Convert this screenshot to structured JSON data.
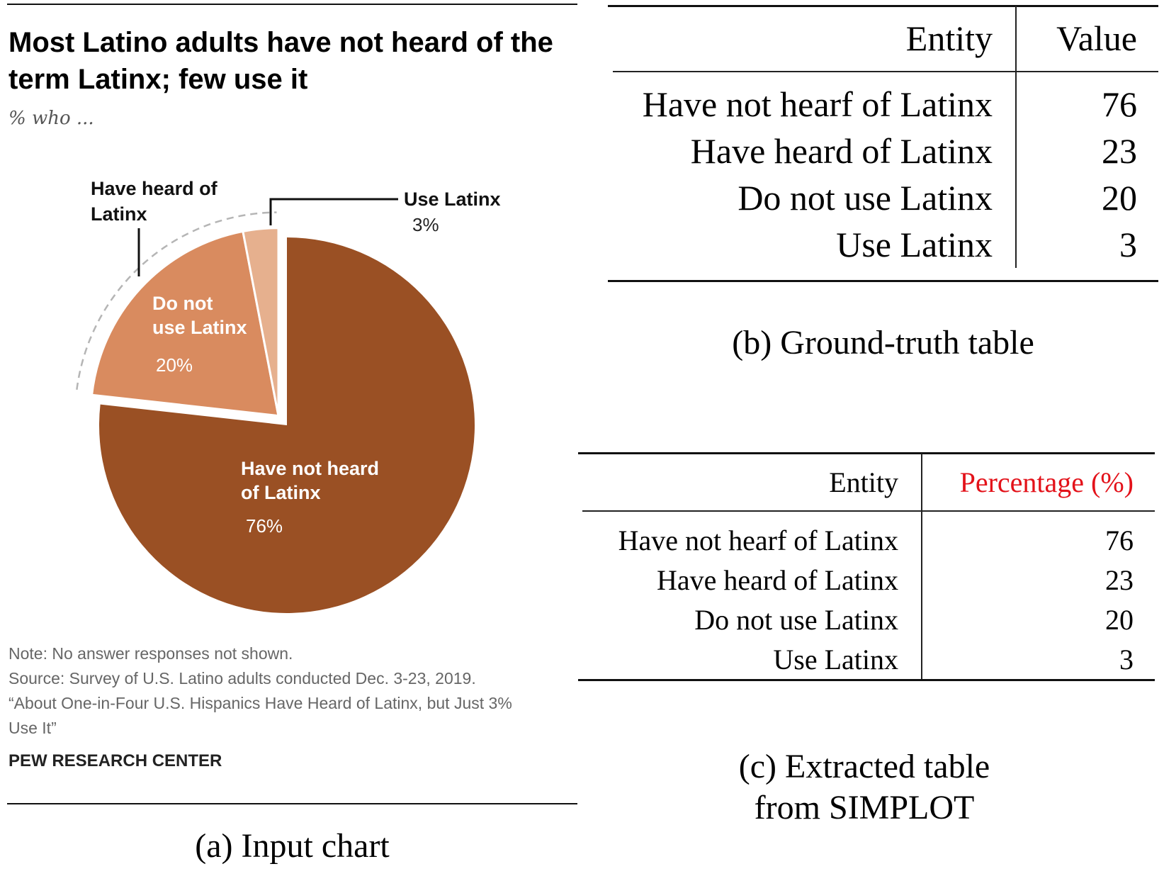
{
  "panel_a": {
    "chart_title": "Most Latino adults have not heard of the term Latinx; few use it",
    "chart_subtitle": "% who ...",
    "notes": [
      "Note: No answer responses not shown.",
      "Source: Survey of U.S. Latino adults conducted Dec. 3-23, 2019.",
      "“About One-in-Four U.S. Hispanics Have Heard of Latinx, but Just 3%",
      "Use It”"
    ],
    "organization": "PEW RESEARCH CENTER",
    "caption": "(a) Input chart"
  },
  "chart_data": {
    "type": "pie",
    "slices": [
      {
        "label_lines": [
          "Have not heard",
          "of Latinx"
        ],
        "value": 76,
        "value_label": "76%",
        "color": "#9a5024"
      },
      {
        "label_lines": [
          "Do not",
          "use Latinx"
        ],
        "value": 20,
        "value_label": "20%",
        "color": "#d98b5f"
      },
      {
        "label_lines": [
          "Use Latinx"
        ],
        "value": 3,
        "value_label": "3%",
        "color": "#e6b08e"
      }
    ],
    "group_label_lines": [
      "Have heard of",
      "Latinx"
    ],
    "group_value": 23
  },
  "panel_b": {
    "caption": "(b) Ground-truth table",
    "headers": [
      "Entity",
      "Value"
    ],
    "rows": [
      [
        "Have not hearf of Latinx",
        "76"
      ],
      [
        "Have heard of Latinx",
        "23"
      ],
      [
        "Do not use Latinx",
        "20"
      ],
      [
        "Use Latinx",
        "3"
      ]
    ]
  },
  "panel_c": {
    "caption_lines": [
      "(c) Extracted table",
      "from SIMPLOT"
    ],
    "headers": [
      "Entity",
      "Percentage (%)"
    ],
    "highlight_color": "#e3121a",
    "rows": [
      [
        "Have not hearf of Latinx",
        "76"
      ],
      [
        "Have heard of Latinx",
        "23"
      ],
      [
        "Do not use Latinx",
        "20"
      ],
      [
        "Use Latinx",
        "3"
      ]
    ]
  }
}
